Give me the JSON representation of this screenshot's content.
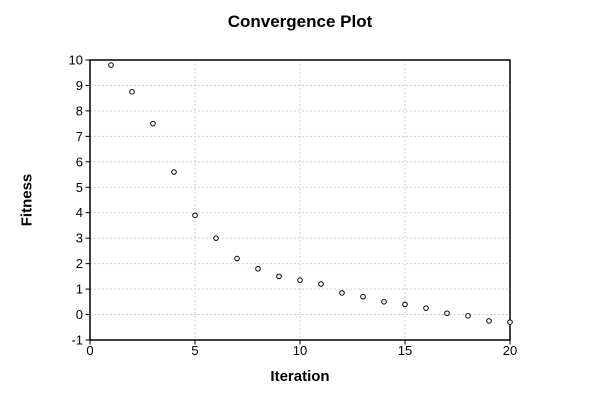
{
  "figure": {
    "background": "#ffffff"
  },
  "chart_data": {
    "type": "scatter",
    "title": "Convergence Plot",
    "xlabel": "Iteration",
    "ylabel": "Fitness",
    "x": [
      1,
      2,
      3,
      4,
      5,
      6,
      7,
      8,
      9,
      10,
      11,
      12,
      13,
      14,
      15,
      16,
      17,
      18,
      19,
      20
    ],
    "y": [
      9.8,
      8.75,
      7.5,
      5.6,
      3.9,
      3.0,
      2.2,
      1.8,
      1.5,
      1.35,
      1.2,
      0.85,
      0.7,
      0.5,
      0.4,
      0.25,
      0.05,
      -0.05,
      -0.25,
      -0.3
    ],
    "xlim": [
      0,
      20
    ],
    "ylim": [
      -1,
      10
    ],
    "xticks": [
      0,
      5,
      10,
      15,
      20
    ],
    "yticks": [
      -1,
      0,
      1,
      2,
      3,
      4,
      5,
      6,
      7,
      8,
      9,
      10
    ],
    "grid": true,
    "grid_style": "dotted",
    "legend": false,
    "marker": "open-circle",
    "colors": {
      "background": "#ffffff",
      "frame": "#000000",
      "grid": "#c0c0c0",
      "marker_stroke": "#000000",
      "marker_fill": "#ffffff",
      "text": "#000000"
    }
  }
}
